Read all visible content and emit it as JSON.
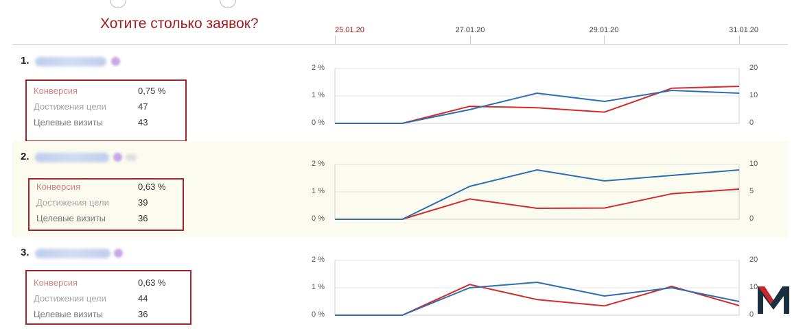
{
  "header": {
    "title": "Хотите столько заявок?",
    "dates": [
      "25.01.20",
      "27.01.20",
      "29.01.20",
      "31.01.20"
    ]
  },
  "colors": {
    "conversion_line": "#d42a2a",
    "goal_line": "#2c6eb0",
    "frame": "#a2222d",
    "accent_text": "#a21b1b"
  },
  "labels": {
    "conversion": "Конверсия",
    "goals": "Достижения цели",
    "visits": "Целевые визиты"
  },
  "sections": [
    {
      "number": "1.",
      "conversion": "0,75 %",
      "goals": "47",
      "visits": "43",
      "left_ticks": [
        "2 %",
        "1 %",
        "0 %"
      ],
      "right_ticks": [
        "20",
        "10",
        "0"
      ]
    },
    {
      "number": "2.",
      "conversion": "0,63 %",
      "goals": "39",
      "visits": "36",
      "left_ticks": [
        "2 %",
        "1 %",
        "0 %"
      ],
      "right_ticks": [
        "10",
        "5",
        "0"
      ]
    },
    {
      "number": "3.",
      "conversion": "0,63 %",
      "goals": "44",
      "visits": "36",
      "left_ticks": [
        "2 %",
        "1 %",
        "0 %"
      ],
      "right_ticks": [
        "20",
        "10",
        "0"
      ]
    }
  ],
  "chart_data": [
    {
      "type": "line",
      "x": [
        "25.01.20",
        "26.01.20",
        "27.01.20",
        "28.01.20",
        "29.01.20",
        "30.01.20",
        "31.01.20"
      ],
      "y_left_range": [
        0,
        2
      ],
      "y_right_range": [
        0,
        20
      ],
      "series": [
        {
          "axis": "left",
          "color": "#d42a2a",
          "values": [
            0,
            0,
            0.62,
            0.57,
            0.41,
            1.28,
            1.35
          ]
        },
        {
          "axis": "right",
          "color": "#2c6eb0",
          "values": [
            0,
            0,
            5,
            11,
            8,
            12,
            11
          ]
        }
      ]
    },
    {
      "type": "line",
      "x": [
        "25.01.20",
        "26.01.20",
        "27.01.20",
        "28.01.20",
        "29.01.20",
        "30.01.20",
        "31.01.20"
      ],
      "y_left_range": [
        0,
        2
      ],
      "y_right_range": [
        0,
        10
      ],
      "series": [
        {
          "axis": "left",
          "color": "#d42a2a",
          "values": [
            0,
            0,
            0.74,
            0.4,
            0.41,
            0.93,
            1.1
          ]
        },
        {
          "axis": "right",
          "color": "#2c6eb0",
          "values": [
            0,
            0,
            6,
            9,
            7,
            8,
            9
          ]
        }
      ]
    },
    {
      "type": "line",
      "x": [
        "25.01.20",
        "26.01.20",
        "27.01.20",
        "28.01.20",
        "29.01.20",
        "30.01.20",
        "31.01.20"
      ],
      "y_left_range": [
        0,
        2
      ],
      "y_right_range": [
        0,
        20
      ],
      "series": [
        {
          "axis": "left",
          "color": "#d42a2a",
          "values": [
            0,
            0,
            1.12,
            0.57,
            0.34,
            1.05,
            0.35
          ]
        },
        {
          "axis": "right",
          "color": "#2c6eb0",
          "values": [
            0,
            0,
            10,
            12,
            7,
            10,
            5
          ]
        }
      ]
    }
  ]
}
